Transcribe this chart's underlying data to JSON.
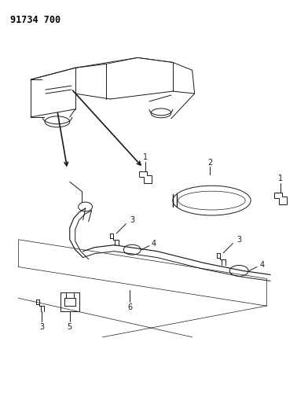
{
  "title": "91734 700",
  "bg_color": "#ffffff",
  "line_color": "#1a1a1a",
  "fig_width": 3.92,
  "fig_height": 5.33,
  "dpi": 100
}
